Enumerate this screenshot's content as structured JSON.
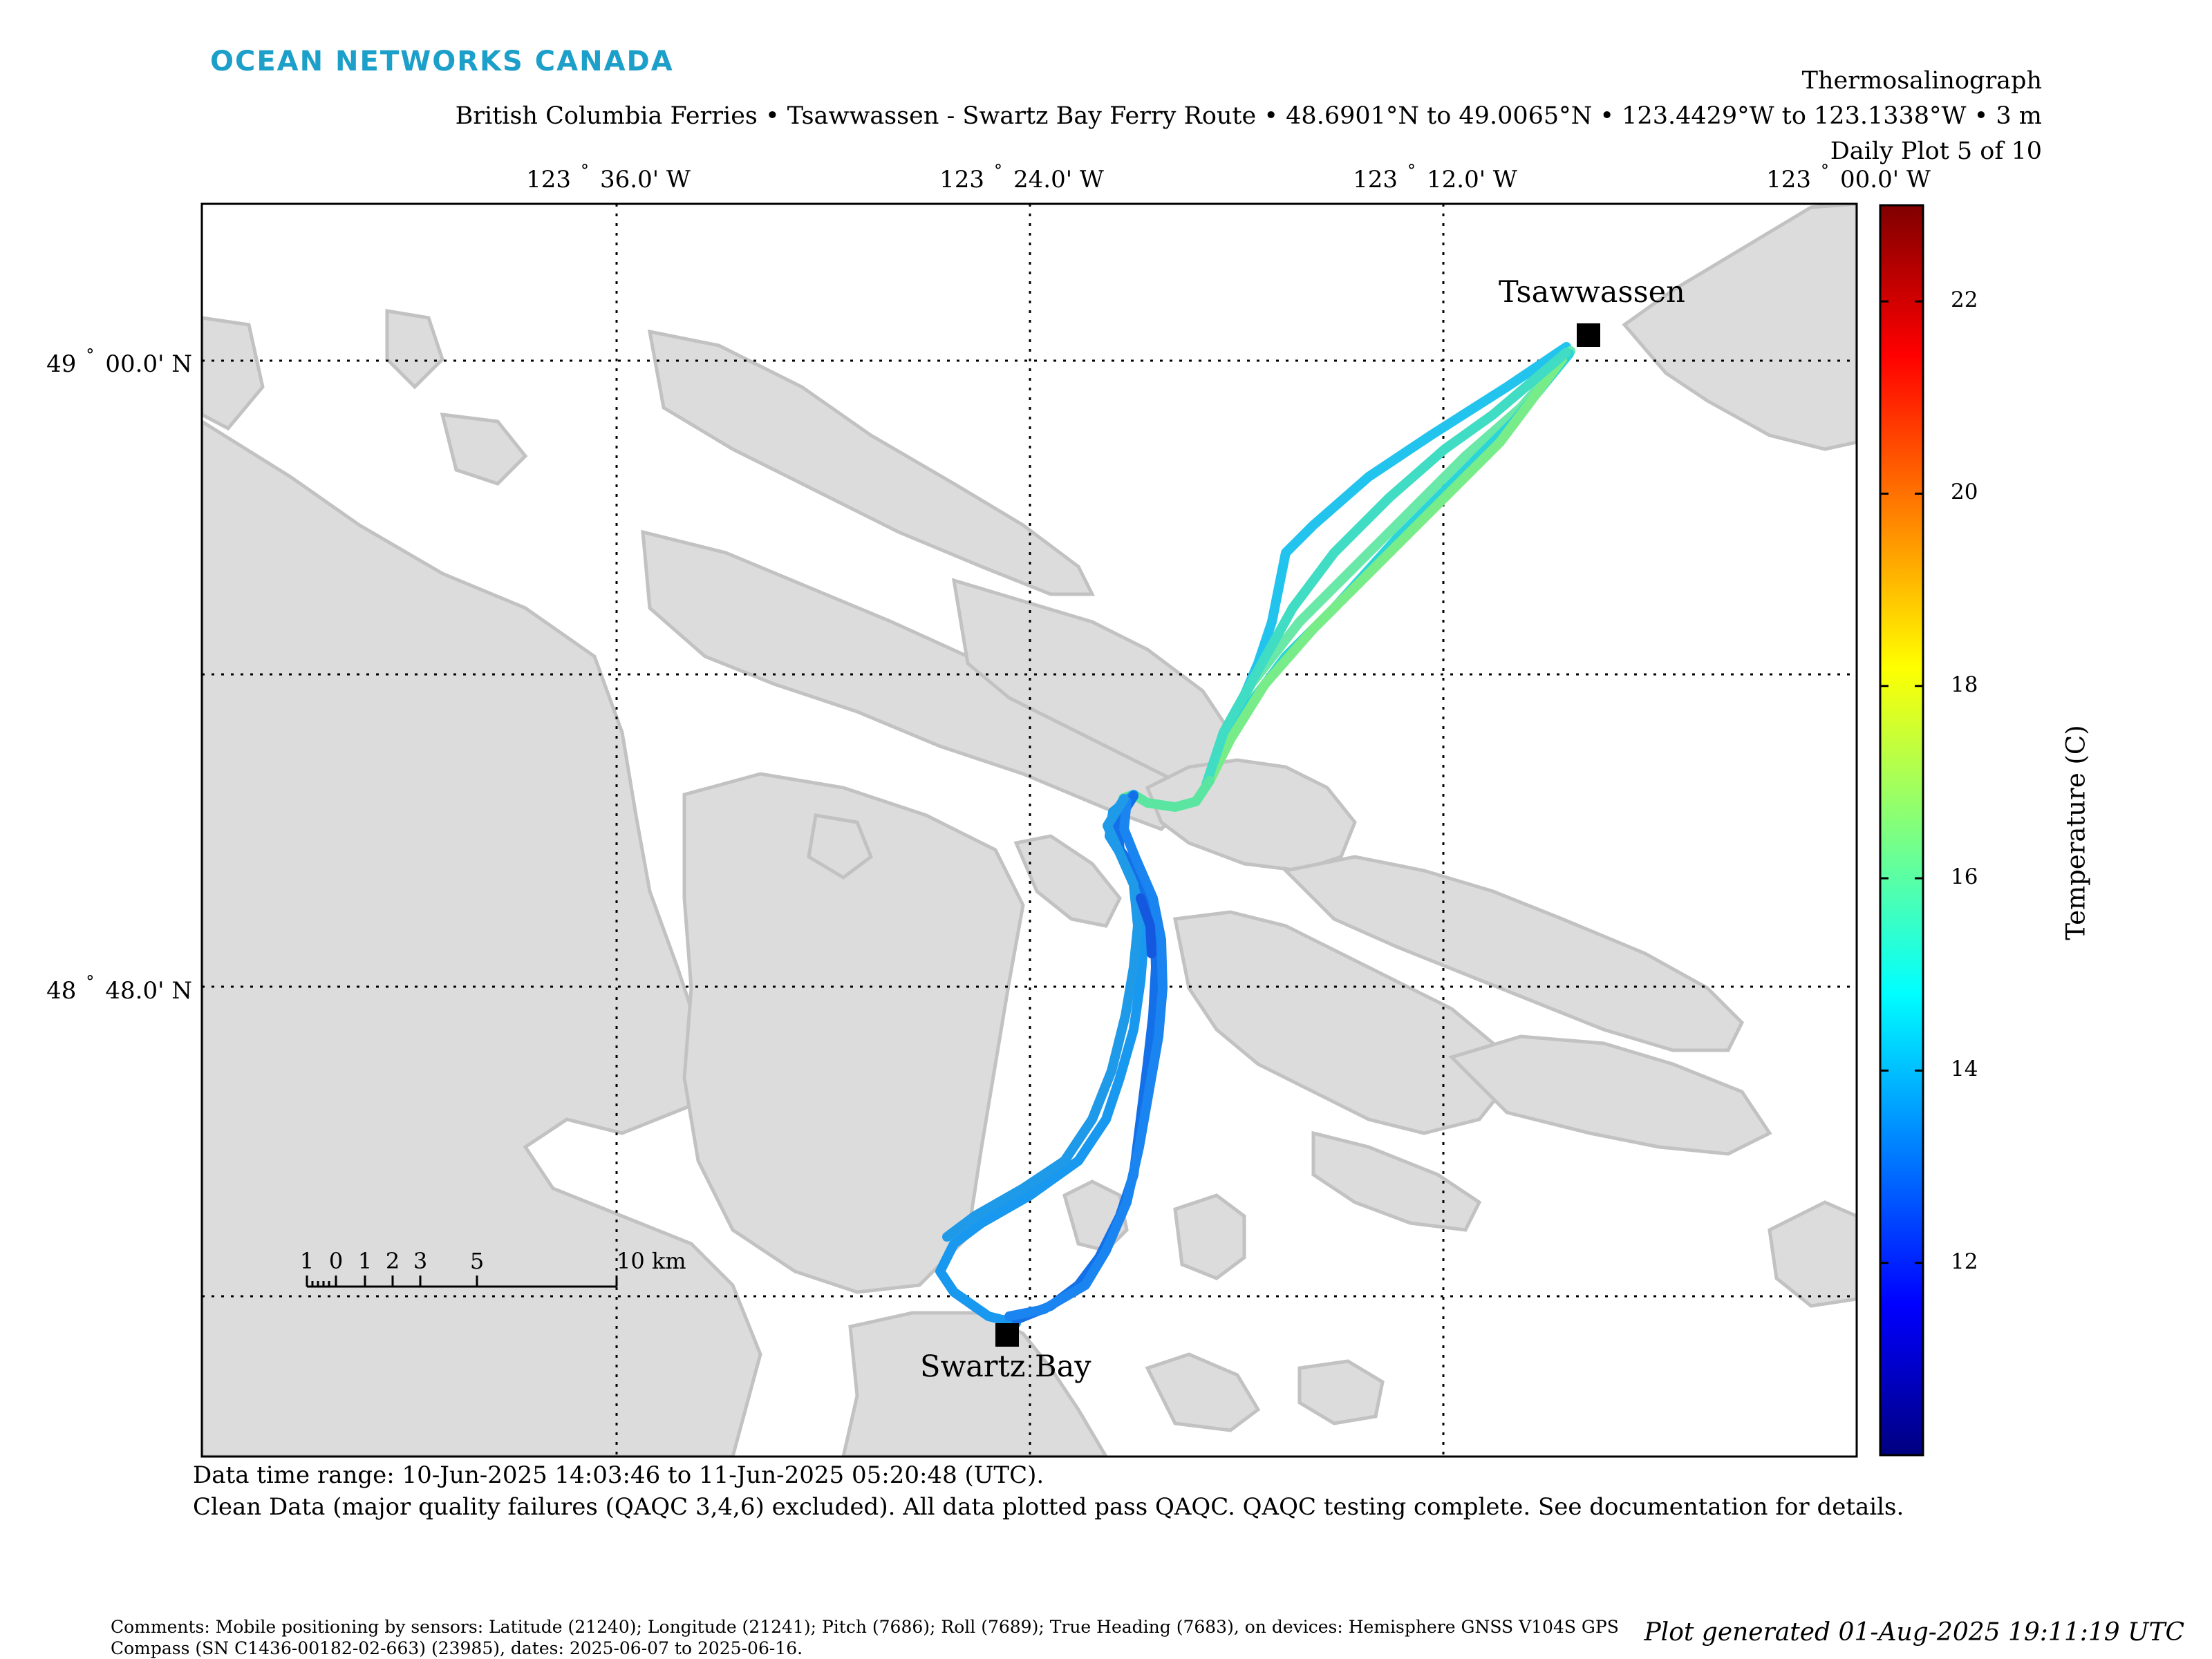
{
  "brand": {
    "logo_text": "OCEAN NETWORKS CANADA"
  },
  "header": {
    "title": "Thermosalinograph",
    "subtitle": "British Columbia Ferries • Tsawwassen - Swartz Bay Ferry Route • 48.6901°N to 49.0065°N • 123.4429°W to 123.1338°W • 3 m",
    "plot_index": "Daily Plot 5 of 10"
  },
  "map": {
    "lon_ticks": [
      {
        "deg": "123",
        "min": "36.0' W"
      },
      {
        "deg": "123",
        "min": "24.0' W"
      },
      {
        "deg": "123",
        "min": "12.0' W"
      },
      {
        "deg": "123",
        "min": "00.0' W"
      }
    ],
    "lat_ticks": [
      {
        "deg": "49",
        "min": "00.0' N"
      },
      {
        "deg": "48",
        "min": "48.0' N"
      }
    ],
    "places": [
      {
        "name": "Tsawwassen"
      },
      {
        "name": "Swartz Bay"
      }
    ],
    "scale_bar": {
      "labels": [
        "1",
        "0",
        "1",
        "2",
        "3",
        "5",
        "10 km"
      ]
    },
    "colors": {
      "land": "#dcdcdc",
      "coast": "#c2c2c2",
      "water": "#ffffff",
      "grid": "#000000"
    }
  },
  "colorbar": {
    "label": "Temperature (C)",
    "min": 10,
    "max": 23,
    "ticks": [
      "22",
      "20",
      "18",
      "16",
      "14",
      "12"
    ],
    "tick_values": [
      22,
      20,
      18,
      16,
      14,
      12
    ],
    "colormap": "jet"
  },
  "footer": {
    "time_range": "Data time range: 10-Jun-2025 14:03:46 to 11-Jun-2025 05:20:48 (UTC).",
    "qaqc": "Clean Data (major quality failures (QAQC 3,4,6) excluded). All data plotted pass QAQC. QAQC testing complete. See documentation for details.",
    "comments": "Comments: Mobile positioning by sensors: Latitude (21240); Longitude (21241); Pitch (7686); Roll (7689); True Heading (7683), on devices: Hemisphere GNSS V104S GPS Compass (SN C1436-00182-02-663) (23985), dates: 2025-06-07 to 2025-06-16.",
    "generated": "Plot generated 01-Aug-2025 19:11:19 UTC"
  }
}
